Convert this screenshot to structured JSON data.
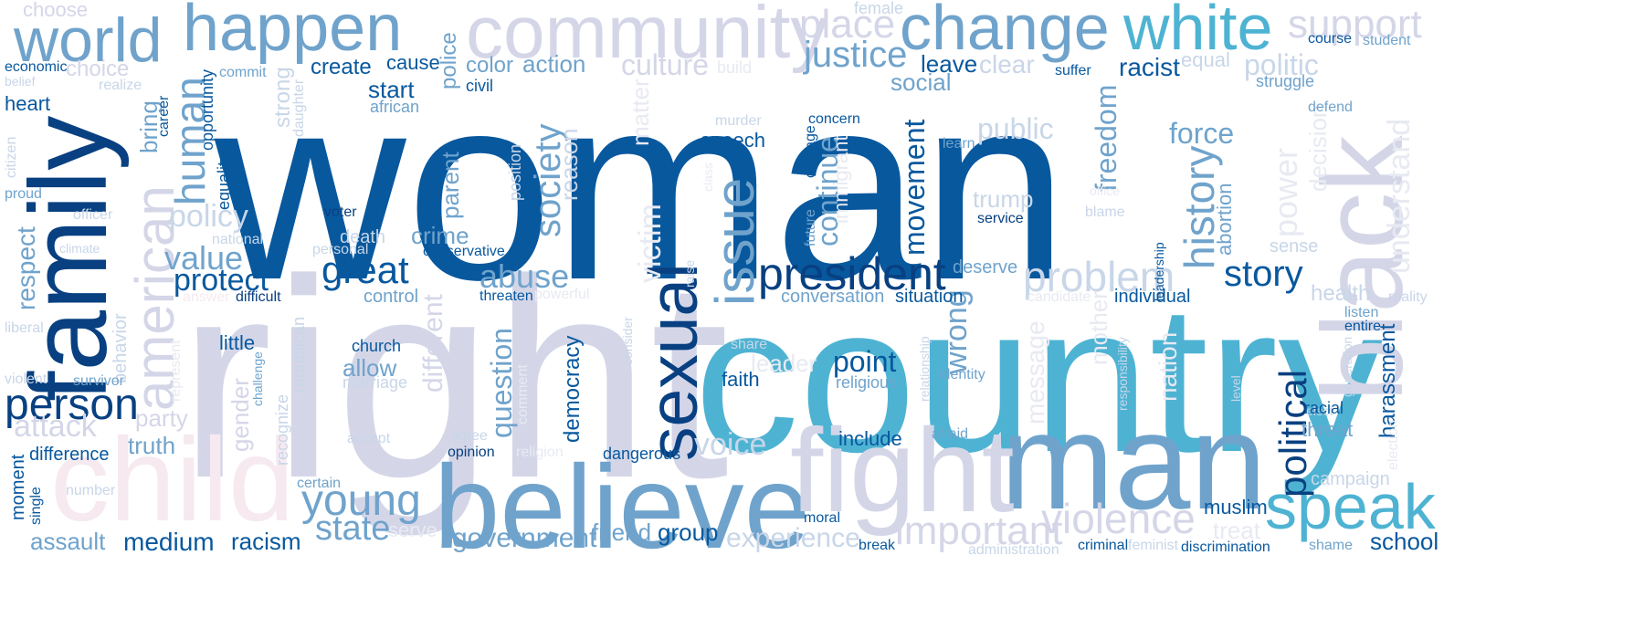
{
  "words": {
    "woman": "woman",
    "right": "right",
    "country": "country",
    "family": "family",
    "man": "man",
    "believe": "believe",
    "black": "black",
    "fight": "fight",
    "child": "child",
    "american": "american",
    "community": "community",
    "change": "change",
    "world": "world",
    "happen": "happen",
    "white": "white",
    "sexual": "sexual",
    "speak": "speak",
    "issue": "issue",
    "president": "president",
    "person": "person",
    "young": "young",
    "problem": "problem",
    "violence": "violence",
    "important": "important",
    "support": "support",
    "place": "place",
    "justice": "justice",
    "culture": "culture",
    "history": "history",
    "society": "society",
    "political": "political",
    "great": "great",
    "state": "state",
    "human": "human",
    "policy": "policy",
    "value": "value",
    "protect": "protect",
    "abuse": "abuse",
    "story": "story",
    "movement": "movement",
    "freedom": "freedom",
    "continue": "continue",
    "wrong": "wrong",
    "question": "question",
    "government": "government",
    "experience": "experience",
    "voice": "voice",
    "point": "point",
    "power": "power",
    "understand": "understand",
    "victim": "victim",
    "politic": "politic",
    "create": "create",
    "leave": "leave",
    "racist": "racist",
    "public": "public",
    "force": "force",
    "attack": "attack",
    "choose": "choose",
    "choice": "choice",
    "crime": "crime",
    "different": "different",
    "message": "message",
    "decision": "decision",
    "nation": "nation",
    "mother": "mother",
    "respect": "respect",
    "gender": "gender",
    "party": "party",
    "truth": "truth",
    "harassment": "harassment",
    "health": "health",
    "social": "social",
    "clear": "clear",
    "equal": "equal",
    "group": "group",
    "racism": "racism",
    "medium": "medium",
    "assault": "assault",
    "start": "start",
    "cause": "cause",
    "police": "police",
    "color": "color",
    "action": "action",
    "allow": "allow",
    "school": "school",
    "matter": "matter",
    "democracy": "democracy",
    "faith": "faith",
    "speech": "speech",
    "trump": "trump",
    "parent": "parent",
    "reason": "reason",
    "bring": "bring",
    "strong": "strong",
    "opportunity": "opportunity",
    "equality": "equality",
    "heart": "heart",
    "economic": "economic",
    "belief": "belief",
    "citizen": "citizen",
    "proud": "proud",
    "officer": "officer",
    "climate": "climate",
    "liberal": "liberal",
    "violent": "violent",
    "behavior": "behavior",
    "survivor": "survivor",
    "difference": "difference",
    "moment": "moment",
    "single": "single",
    "number": "number",
    "build": "build",
    "realize": "realize",
    "career": "career",
    "commit": "commit",
    "african": "african",
    "civil": "civil",
    "daughter": "daughter",
    "position": "position",
    "murder": "murder",
    "concern": "concern",
    "learn": "learn",
    "courage": "courage",
    "future": "future",
    "immigrant": "immigrant",
    "service": "service",
    "voter": "voter",
    "national": "national",
    "death": "death",
    "personal": "personal",
    "conservative": "conservative",
    "answer": "answer",
    "difficult": "difficult",
    "control": "control",
    "threaten": "threaten",
    "powerful": "powerful",
    "represent": "represent",
    "republican": "republican",
    "recognize": "recognize",
    "challenge": "challenge",
    "little": "little",
    "church": "church",
    "marriage": "marriage",
    "accept": "accept",
    "agree": "agree",
    "opinion": "opinion",
    "religion": "religion",
    "comment": "comment",
    "dangerous": "dangerous",
    "certain": "certain",
    "serve": "serve",
    "friend": "friend",
    "moral": "moral",
    "break": "break",
    "include": "include",
    "afraid": "afraid",
    "criminal": "criminal",
    "feminist": "feminist",
    "discrimination": "discrimination",
    "administration": "administration",
    "identity": "identity",
    "religious": "religious",
    "leader": "leader",
    "share": "share",
    "consider": "consider",
    "raise": "raise",
    "relationship": "relationship",
    "responsibility": "responsibility",
    "level": "level",
    "elect": "elect",
    "generation": "generation",
    "racial": "racial",
    "threat": "threat",
    "campaign": "campaign",
    "muslim": "muslim",
    "treat": "treat",
    "shame": "shame",
    "listen": "listen",
    "entire": "entire",
    "election": "election",
    "reality": "reality",
    "sense": "sense",
    "defend": "defend",
    "struggle": "struggle",
    "course": "course",
    "student": "student",
    "suffer": "suffer",
    "female": "female",
    "situation": "situation",
    "conversation": "conversation",
    "deserve": "deserve",
    "candidate": "candidate",
    "individual": "individual",
    "abortion": "abortion",
    "leadership": "leadership",
    "office": "office",
    "blame": "blame",
    "class": "class"
  },
  "palette": {
    "dark": "#08589e",
    "navy": "#084081",
    "mid": "#2b8cbe",
    "blue": "#4eb3d3",
    "steel": "#6fa3cc",
    "sky": "#8db6d9",
    "pale": "#c8d6e8",
    "lav": "#d4d6e8",
    "pink": "#f6eaf0",
    "ghost": "#e8eaf2"
  }
}
